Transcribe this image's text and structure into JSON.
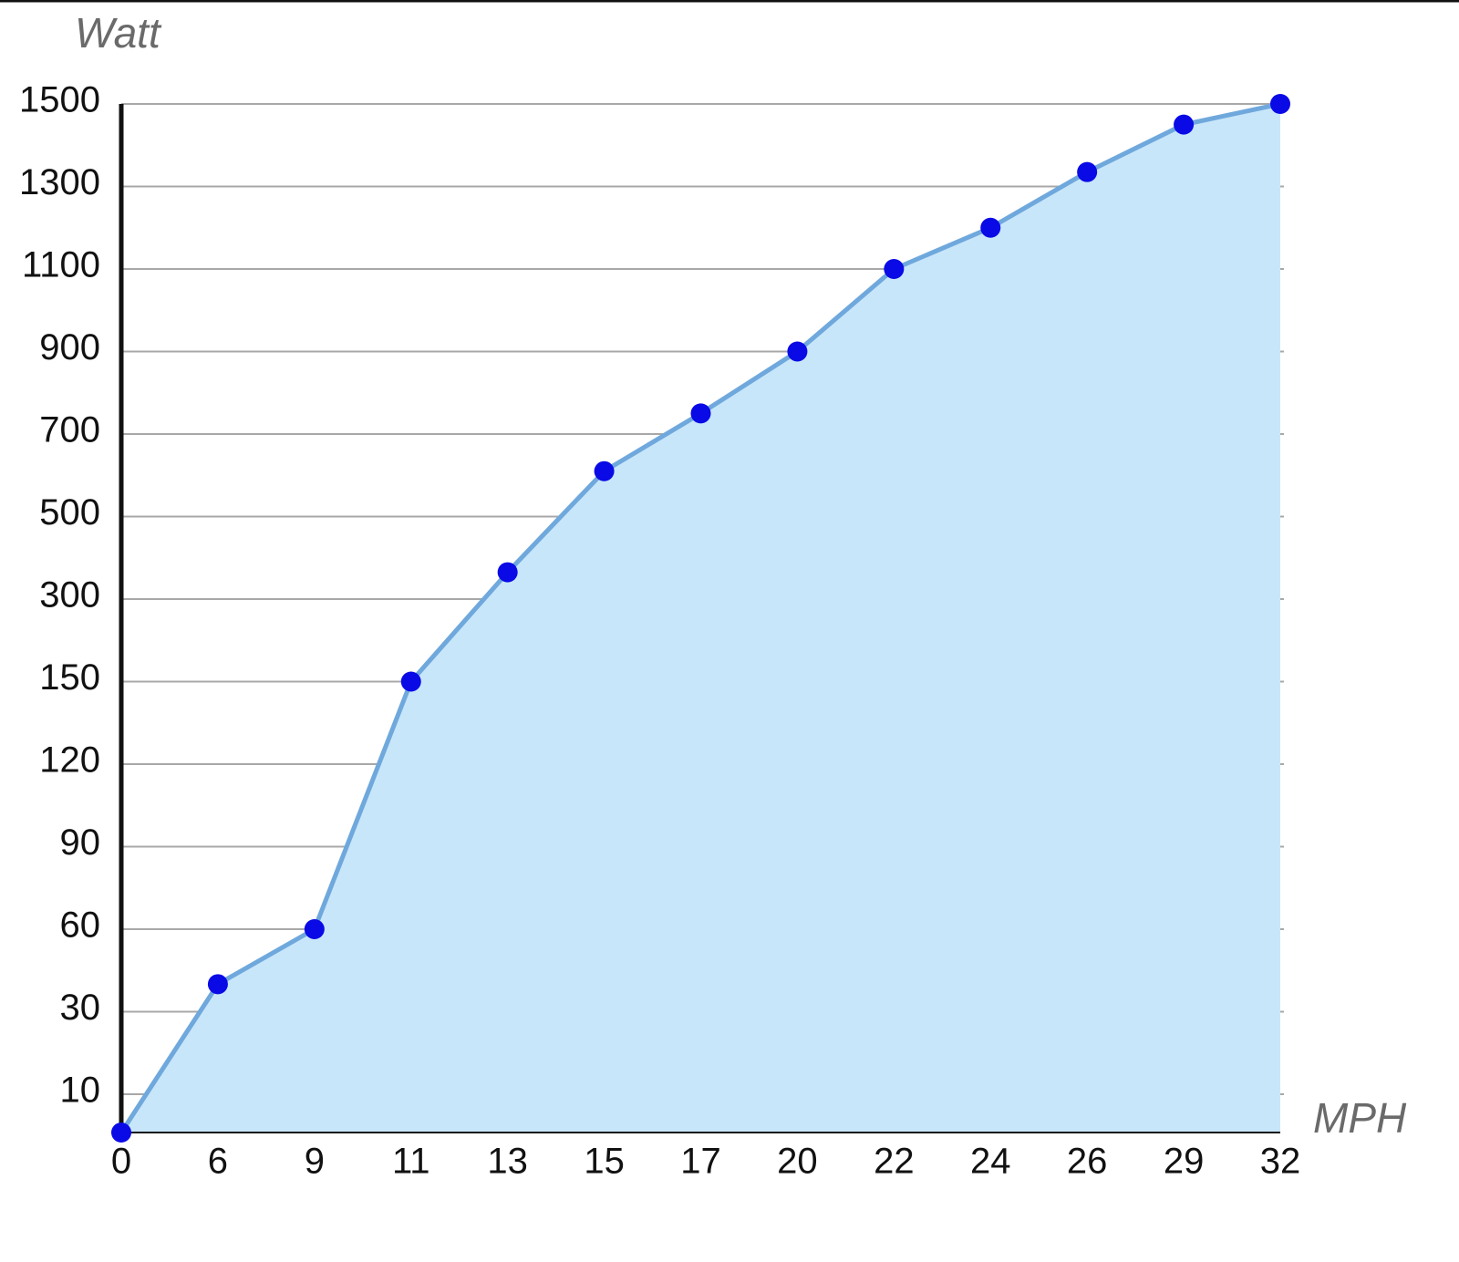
{
  "chart_data": {
    "type": "area",
    "x_label": "MPH",
    "y_label": "Watt",
    "categories": [
      0,
      6,
      9,
      11,
      13,
      15,
      17,
      20,
      22,
      24,
      26,
      29,
      32
    ],
    "values": [
      0,
      40,
      60,
      150,
      365,
      610,
      750,
      900,
      1100,
      1200,
      1335,
      1450,
      1500
    ],
    "line_color": "#6fa8dc",
    "fill_color": "#c8e6fa",
    "marker_color": "#0a0ae6",
    "ylim": [
      0,
      1500
    ],
    "yticks": [
      10,
      30,
      60,
      90,
      120,
      150,
      300,
      500,
      700,
      900,
      1100,
      1300,
      1500
    ],
    "grid": true
  }
}
